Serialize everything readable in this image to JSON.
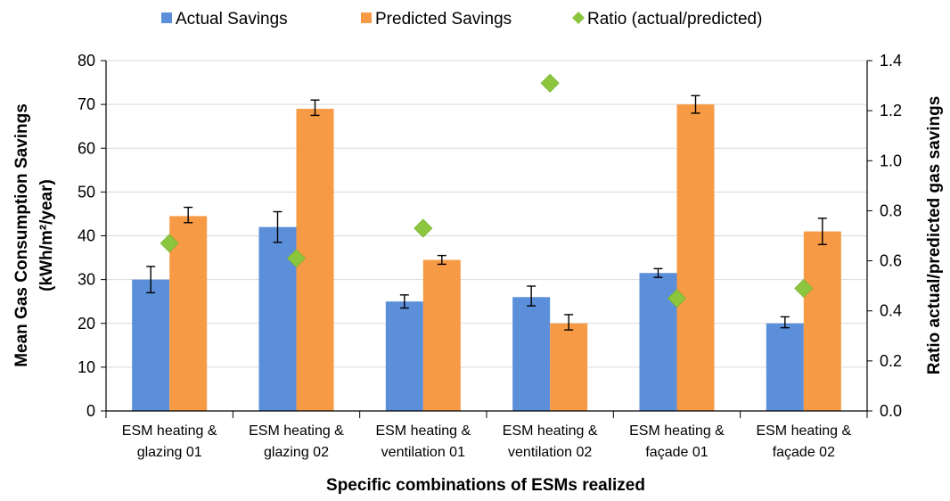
{
  "chart_data": {
    "type": "bar",
    "xlabel": "Specific combinations of ESMs realized",
    "ylabel_line1": "Mean Gas Consumption Savings",
    "ylabel_line2": "(kWh/m²/year)",
    "y2label": "Ratio actual/predicted gas savings",
    "ylim": [
      0,
      80
    ],
    "y2lim": [
      0,
      1.4
    ],
    "yticks": [
      "0",
      "10",
      "20",
      "30",
      "40",
      "50",
      "60",
      "70",
      "80"
    ],
    "y2ticks": [
      "0.0",
      "0.2",
      "0.4",
      "0.6",
      "0.8",
      "1.0",
      "1.2",
      "1.4"
    ],
    "categories": [
      [
        "ESM heating &",
        "glazing 01"
      ],
      [
        "ESM heating &",
        "glazing 02"
      ],
      [
        "ESM heating &",
        "ventilation 01"
      ],
      [
        "ESM heating &",
        "ventilation 02"
      ],
      [
        "ESM heating &",
        "façade 01"
      ],
      [
        "ESM heating &",
        "façade 02"
      ]
    ],
    "grid": "horizontal",
    "legend_position": "top",
    "series": [
      {
        "name": "Actual Savings",
        "kind": "bar",
        "axis": "left",
        "color": "#5b8fd9",
        "values": [
          30,
          42,
          25,
          26,
          31.5,
          20
        ],
        "error_low": [
          27,
          38.5,
          23.5,
          24,
          30.5,
          19
        ],
        "error_high": [
          33,
          45.5,
          26.5,
          28.5,
          32.5,
          21.5
        ]
      },
      {
        "name": "Predicted Savings",
        "kind": "bar",
        "axis": "left",
        "color": "#f79a46",
        "values": [
          44.5,
          69,
          34.5,
          20,
          70,
          41
        ],
        "error_low": [
          43,
          67.5,
          33.5,
          18.5,
          68,
          38
        ],
        "error_high": [
          46.5,
          71,
          35.5,
          22,
          72,
          44
        ]
      },
      {
        "name": "Ratio (actual/predicted)",
        "kind": "marker",
        "axis": "right",
        "color": "#8cc63f",
        "values": [
          0.67,
          0.61,
          0.73,
          1.31,
          0.45,
          0.49
        ]
      }
    ]
  }
}
